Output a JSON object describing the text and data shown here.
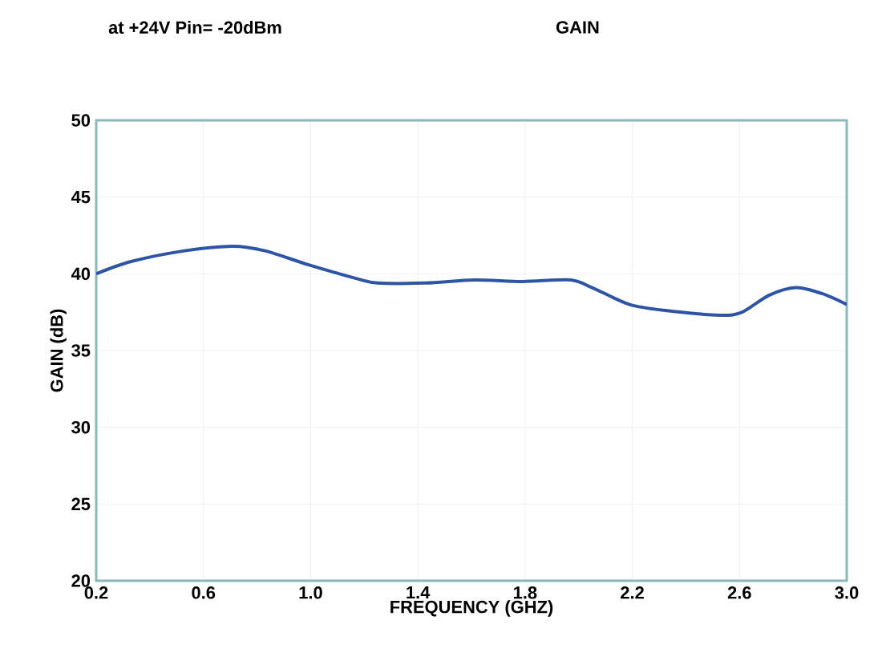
{
  "chart_data": {
    "type": "line",
    "title": "GAIN",
    "subtitle": "at +24V Pin= -20dBm",
    "xlabel": "FREQUENCY (GHZ)",
    "ylabel": "GAIN (dB)",
    "xlim": [
      0.2,
      3.0
    ],
    "ylim": [
      20,
      50
    ],
    "xticks": [
      {
        "value": 0.2,
        "label": "0.2"
      },
      {
        "value": 0.6,
        "label": "0.6"
      },
      {
        "value": 1.0,
        "label": "1.0"
      },
      {
        "value": 1.4,
        "label": "1.4"
      },
      {
        "value": 1.8,
        "label": "1.8"
      },
      {
        "value": 2.2,
        "label": "2.2"
      },
      {
        "value": 2.6,
        "label": "2.6"
      },
      {
        "value": 3.0,
        "label": "3.0"
      }
    ],
    "yticks": [
      20,
      25,
      30,
      35,
      40,
      45,
      50
    ],
    "grid": true,
    "series": [
      {
        "color": "#2e55a5",
        "x": [
          0.2,
          0.33,
          0.53,
          0.71,
          0.83,
          0.99,
          1.17,
          1.25,
          1.43,
          1.61,
          1.79,
          1.97,
          2.05,
          2.19,
          2.33,
          2.53,
          2.61,
          2.71,
          2.81,
          2.91,
          3.0
        ],
        "values": [
          40.0,
          40.8,
          41.5,
          41.8,
          41.5,
          40.6,
          39.7,
          39.4,
          39.4,
          39.6,
          39.5,
          39.6,
          39.1,
          38.0,
          37.6,
          37.3,
          37.5,
          38.6,
          39.1,
          38.7,
          38.0
        ]
      }
    ]
  }
}
